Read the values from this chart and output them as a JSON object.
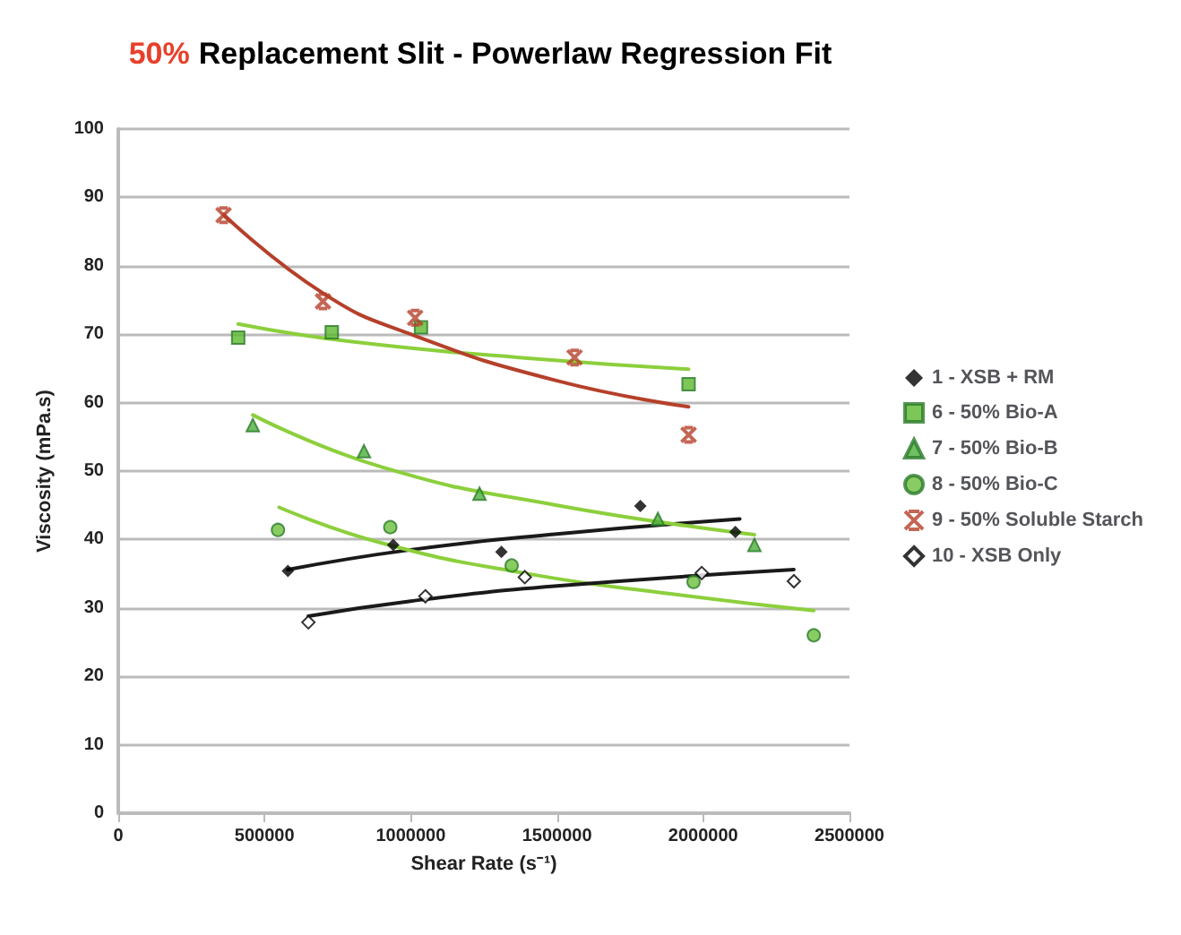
{
  "chart_data": {
    "type": "scatter",
    "title": "50% Replacement Slit - Powerlaw Regression Fit",
    "xlabel": "Shear Rate (s⁻¹)",
    "ylabel": "Viscosity (mPa.s)",
    "xlim": [
      0,
      2500000
    ],
    "xticks": [
      0,
      500000,
      1000000,
      1500000,
      2000000,
      2500000
    ],
    "ylim": [
      0,
      100
    ],
    "yticks": [
      0,
      10,
      20,
      30,
      40,
      50,
      60,
      70,
      80,
      90,
      100
    ],
    "grid": "y",
    "legend": "right",
    "series": [
      {
        "name": "1 - XSB + RM",
        "color": "#000000",
        "marker": "diamond",
        "x": [
          580000,
          940000,
          1310000,
          1785000,
          2110000
        ],
        "values": [
          35.4,
          39.2,
          38.2,
          44.9,
          41.1
        ]
      },
      {
        "name": "6 - 50% Bio-A",
        "color": "#5cb82e",
        "marker": "square",
        "x": [
          410000,
          730000,
          1035000,
          1950000
        ],
        "values": [
          69.5,
          70.3,
          71.0,
          62.7
        ]
      },
      {
        "name": "7 - 50% Bio-B",
        "color": "#4caf3c",
        "marker": "triangle",
        "x": [
          460000,
          840000,
          1235000,
          1845000,
          2175000
        ],
        "values": [
          56.7,
          52.9,
          46.7,
          43.0,
          39.2
        ]
      },
      {
        "name": "8 - 50% Bio-C",
        "color": "#6cbf3c",
        "marker": "circle",
        "x": [
          546000,
          930000,
          1345000,
          1967000,
          2378000
        ],
        "values": [
          41.4,
          41.8,
          36.2,
          33.8,
          26.0
        ]
      },
      {
        "name": "9 - 50% Soluble Starch",
        "color": "#b5402a",
        "marker": "cross",
        "x": [
          360000,
          700000,
          1015000,
          1560000,
          1950000
        ],
        "values": [
          87.4,
          74.8,
          72.4,
          66.6,
          55.3
        ]
      },
      {
        "name": "10 - XSB Only",
        "color": "#ffffff",
        "marker": "diamond",
        "x": [
          650000,
          1050000,
          1390000,
          1995000,
          2310000
        ],
        "values": [
          27.9,
          31.7,
          34.5,
          35.1,
          33.9
        ]
      },
      {
        "type": "line",
        "color": "#1a1a1a",
        "marker": "none",
        "x": [
          580000,
          1000000,
          1500000,
          2125000
        ],
        "values": [
          35.6,
          38.5,
          40.8,
          43.0
        ]
      },
      {
        "type": "line",
        "color": "#8ccf3c",
        "marker": "none",
        "x": [
          410000,
          800000,
          1400000,
          1950000
        ],
        "values": [
          71.5,
          68.9,
          66.5,
          64.9
        ]
      },
      {
        "type": "line",
        "color": "#8ccf3c",
        "marker": "none",
        "x": [
          460000,
          900000,
          1500000,
          2175000
        ],
        "values": [
          58.2,
          50.6,
          45.0,
          40.7
        ]
      },
      {
        "type": "line",
        "color": "#b5402a",
        "marker": "none",
        "x": [
          360000,
          700000,
          1000000,
          1500000,
          1950000
        ],
        "values": [
          87.5,
          76.0,
          70.0,
          63.2,
          59.4
        ]
      },
      {
        "type": "line",
        "color": "#8ccf3c",
        "marker": "none",
        "x": [
          550000,
          900000,
          1400000,
          1900000,
          2378000
        ],
        "values": [
          44.7,
          39.5,
          35.0,
          32.0,
          29.6
        ]
      },
      {
        "type": "line",
        "color": "#1a1a1a",
        "marker": "none",
        "x": [
          650000,
          1000000,
          1500000,
          2310000
        ],
        "values": [
          28.8,
          31.0,
          33.2,
          35.6
        ]
      }
    ]
  }
}
